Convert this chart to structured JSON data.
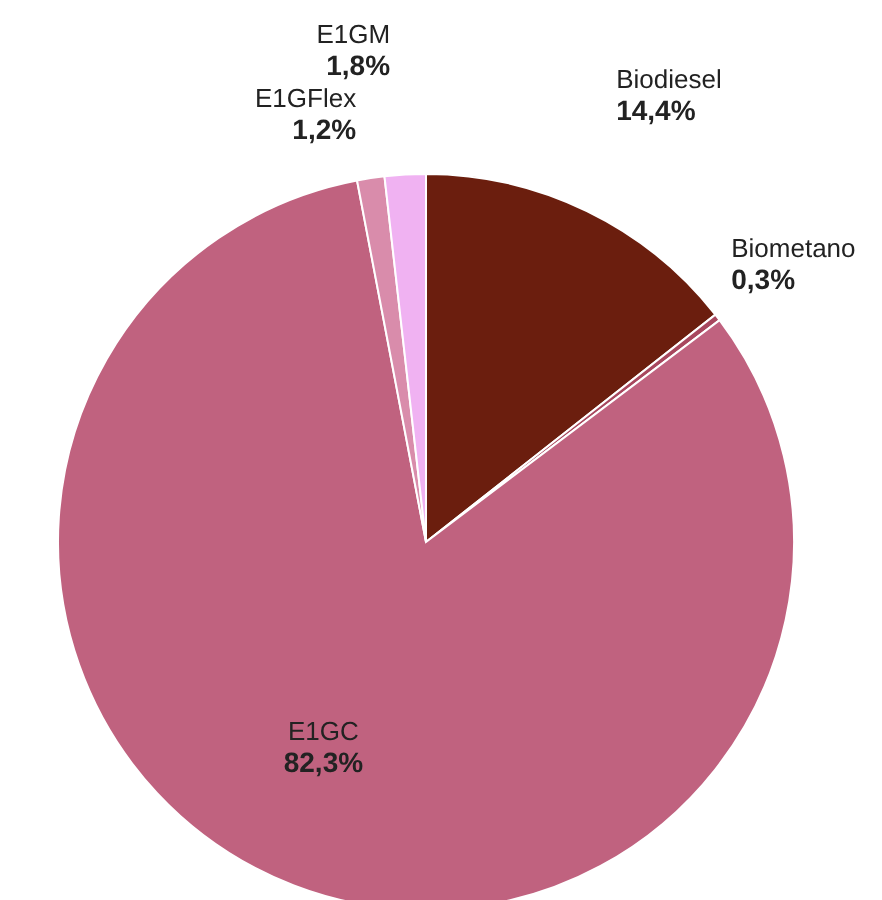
{
  "chart_data": {
    "type": "pie",
    "categories": [
      "Biodiesel",
      "Biometano",
      "E1GC",
      "E1GFlex",
      "E1GM"
    ],
    "values": [
      14.4,
      0.3,
      82.3,
      1.2,
      1.8
    ],
    "colors": [
      "#6b1e0e",
      "#a8475e",
      "#c0627f",
      "#d98cab",
      "#f0b2f2"
    ],
    "value_labels": [
      "14,4%",
      "0,3%",
      "82,3%",
      "1,2%",
      "1,8%"
    ]
  }
}
